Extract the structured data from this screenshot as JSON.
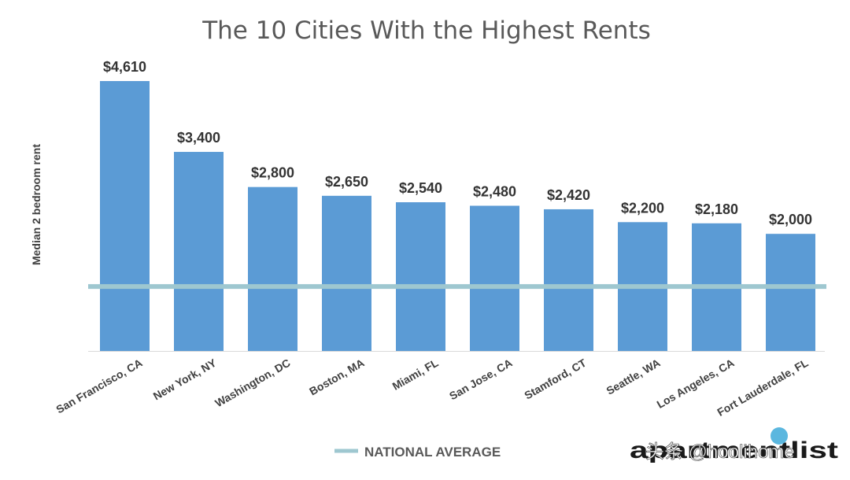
{
  "chart_data": {
    "type": "bar",
    "title": "The 10 Cities With the Highest Rents",
    "xlabel": "",
    "ylabel": "Median 2 bedroom rent",
    "categories": [
      "San Francisco, CA",
      "New York, NY",
      "Washington, DC",
      "Boston, MA",
      "Miami, FL",
      "San Jose, CA",
      "Stamford, CT",
      "Seattle, WA",
      "Los Angeles, CA",
      "Fort Lauderdale, FL"
    ],
    "values": [
      4610,
      3400,
      2800,
      2650,
      2540,
      2480,
      2420,
      2200,
      2180,
      2000
    ],
    "value_labels": [
      "$4,610",
      "$3,400",
      "$2,800",
      "$2,650",
      "$2,540",
      "$2,480",
      "$2,420",
      "$2,200",
      "$2,180",
      "$2,000"
    ],
    "ylim": [
      0,
      4610
    ],
    "grid": false,
    "reference_line": {
      "name": "NATIONAL AVERAGE",
      "value": 1100
    },
    "legend": {
      "position": "bottom-center",
      "entries": [
        "NATIONAL AVERAGE"
      ]
    },
    "colors": {
      "bar": "#5b9bd5",
      "reference_line": "#9ec7d0",
      "axis": "#d9d9d9"
    }
  },
  "branding": {
    "logo": "apartmentlist",
    "watermark": "头条 @hoolihome"
  }
}
